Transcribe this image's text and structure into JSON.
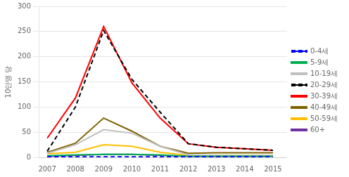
{
  "chart_data": {
    "type": "line",
    "x": [
      2007,
      2008,
      2009,
      2010,
      2011,
      2012,
      2013,
      2014,
      2015
    ],
    "series": [
      {
        "name": "0-4세",
        "color": "#0000ff",
        "line_style": "dashed",
        "values": [
          1,
          1,
          1,
          1,
          1,
          1,
          1,
          1,
          1
        ]
      },
      {
        "name": "5-9세",
        "color": "#00b050",
        "line_style": "solid",
        "values": [
          3,
          5,
          6,
          6,
          5,
          2,
          2,
          2,
          2
        ]
      },
      {
        "name": "10-19세",
        "color": "#c0c0c0",
        "line_style": "solid",
        "values": [
          8,
          25,
          55,
          48,
          22,
          5,
          4,
          4,
          4
        ]
      },
      {
        "name": "20-29세",
        "color": "#000000",
        "line_style": "dashed",
        "values": [
          12,
          100,
          252,
          155,
          90,
          27,
          20,
          17,
          14
        ]
      },
      {
        "name": "30-39세",
        "color": "#ff0000",
        "line_style": "solid",
        "values": [
          38,
          118,
          260,
          148,
          78,
          27,
          20,
          17,
          14
        ]
      },
      {
        "name": "40-49세",
        "color": "#7f6000",
        "line_style": "solid",
        "values": [
          10,
          28,
          78,
          52,
          22,
          8,
          9,
          9,
          9
        ]
      },
      {
        "name": "50-59세",
        "color": "#ffc000",
        "line_style": "solid",
        "values": [
          7,
          10,
          25,
          22,
          10,
          4,
          4,
          4,
          4
        ]
      },
      {
        "name": "60+",
        "color": "#7030a0",
        "line_style": "solid",
        "values": [
          2,
          4,
          6,
          6,
          4,
          2,
          2,
          2,
          2
        ]
      }
    ],
    "ylabel": "10만명 당",
    "xlim": [
      2006.7,
      2015.5
    ],
    "xticks": [
      2007,
      2008,
      2009,
      2010,
      2011,
      2012,
      2013,
      2014,
      2015
    ],
    "ylim": [
      0,
      300
    ],
    "yticks": [
      0,
      50,
      100,
      150,
      200,
      250,
      300
    ],
    "grid": "y",
    "legend": "right"
  }
}
